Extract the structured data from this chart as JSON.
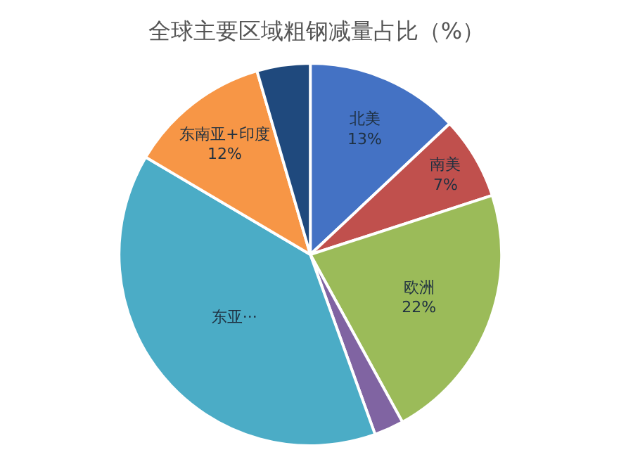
{
  "chart_data": {
    "type": "pie",
    "title": "全球主要区域粗钢减量占比（%）",
    "categories": [
      "北美",
      "南美",
      "欧洲",
      null,
      "东亚···",
      "东南亚+印度",
      null
    ],
    "values": [
      13,
      7,
      22,
      2.5,
      39,
      12,
      4.5
    ],
    "value_labels": [
      "13%",
      "7%",
      "22%",
      null,
      null,
      "12%",
      null
    ],
    "colors": [
      "#4472c4",
      "#c0504d",
      "#9bbb59",
      "#8064a2",
      "#4bacc6",
      "#f79646",
      "#1f497d"
    ],
    "legend": false
  }
}
